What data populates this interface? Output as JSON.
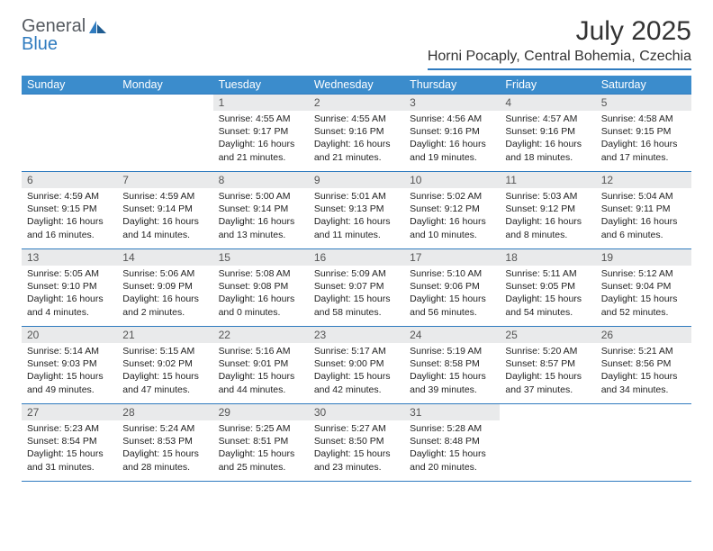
{
  "logo": {
    "general": "General",
    "blue": "Blue"
  },
  "title": "July 2025",
  "location": "Horni Pocaply, Central Bohemia, Czechia",
  "colors": {
    "header_bg": "#3b8ccc",
    "border": "#2f7bbf",
    "daynum_bg": "#e9eaeb",
    "text": "#222222",
    "title_text": "#333333"
  },
  "weekdays": [
    "Sunday",
    "Monday",
    "Tuesday",
    "Wednesday",
    "Thursday",
    "Friday",
    "Saturday"
  ],
  "weeks": [
    [
      {
        "n": "",
        "sr": "",
        "ss": "",
        "dl": ""
      },
      {
        "n": "",
        "sr": "",
        "ss": "",
        "dl": ""
      },
      {
        "n": "1",
        "sr": "Sunrise: 4:55 AM",
        "ss": "Sunset: 9:17 PM",
        "dl": "Daylight: 16 hours and 21 minutes."
      },
      {
        "n": "2",
        "sr": "Sunrise: 4:55 AM",
        "ss": "Sunset: 9:16 PM",
        "dl": "Daylight: 16 hours and 21 minutes."
      },
      {
        "n": "3",
        "sr": "Sunrise: 4:56 AM",
        "ss": "Sunset: 9:16 PM",
        "dl": "Daylight: 16 hours and 19 minutes."
      },
      {
        "n": "4",
        "sr": "Sunrise: 4:57 AM",
        "ss": "Sunset: 9:16 PM",
        "dl": "Daylight: 16 hours and 18 minutes."
      },
      {
        "n": "5",
        "sr": "Sunrise: 4:58 AM",
        "ss": "Sunset: 9:15 PM",
        "dl": "Daylight: 16 hours and 17 minutes."
      }
    ],
    [
      {
        "n": "6",
        "sr": "Sunrise: 4:59 AM",
        "ss": "Sunset: 9:15 PM",
        "dl": "Daylight: 16 hours and 16 minutes."
      },
      {
        "n": "7",
        "sr": "Sunrise: 4:59 AM",
        "ss": "Sunset: 9:14 PM",
        "dl": "Daylight: 16 hours and 14 minutes."
      },
      {
        "n": "8",
        "sr": "Sunrise: 5:00 AM",
        "ss": "Sunset: 9:14 PM",
        "dl": "Daylight: 16 hours and 13 minutes."
      },
      {
        "n": "9",
        "sr": "Sunrise: 5:01 AM",
        "ss": "Sunset: 9:13 PM",
        "dl": "Daylight: 16 hours and 11 minutes."
      },
      {
        "n": "10",
        "sr": "Sunrise: 5:02 AM",
        "ss": "Sunset: 9:12 PM",
        "dl": "Daylight: 16 hours and 10 minutes."
      },
      {
        "n": "11",
        "sr": "Sunrise: 5:03 AM",
        "ss": "Sunset: 9:12 PM",
        "dl": "Daylight: 16 hours and 8 minutes."
      },
      {
        "n": "12",
        "sr": "Sunrise: 5:04 AM",
        "ss": "Sunset: 9:11 PM",
        "dl": "Daylight: 16 hours and 6 minutes."
      }
    ],
    [
      {
        "n": "13",
        "sr": "Sunrise: 5:05 AM",
        "ss": "Sunset: 9:10 PM",
        "dl": "Daylight: 16 hours and 4 minutes."
      },
      {
        "n": "14",
        "sr": "Sunrise: 5:06 AM",
        "ss": "Sunset: 9:09 PM",
        "dl": "Daylight: 16 hours and 2 minutes."
      },
      {
        "n": "15",
        "sr": "Sunrise: 5:08 AM",
        "ss": "Sunset: 9:08 PM",
        "dl": "Daylight: 16 hours and 0 minutes."
      },
      {
        "n": "16",
        "sr": "Sunrise: 5:09 AM",
        "ss": "Sunset: 9:07 PM",
        "dl": "Daylight: 15 hours and 58 minutes."
      },
      {
        "n": "17",
        "sr": "Sunrise: 5:10 AM",
        "ss": "Sunset: 9:06 PM",
        "dl": "Daylight: 15 hours and 56 minutes."
      },
      {
        "n": "18",
        "sr": "Sunrise: 5:11 AM",
        "ss": "Sunset: 9:05 PM",
        "dl": "Daylight: 15 hours and 54 minutes."
      },
      {
        "n": "19",
        "sr": "Sunrise: 5:12 AM",
        "ss": "Sunset: 9:04 PM",
        "dl": "Daylight: 15 hours and 52 minutes."
      }
    ],
    [
      {
        "n": "20",
        "sr": "Sunrise: 5:14 AM",
        "ss": "Sunset: 9:03 PM",
        "dl": "Daylight: 15 hours and 49 minutes."
      },
      {
        "n": "21",
        "sr": "Sunrise: 5:15 AM",
        "ss": "Sunset: 9:02 PM",
        "dl": "Daylight: 15 hours and 47 minutes."
      },
      {
        "n": "22",
        "sr": "Sunrise: 5:16 AM",
        "ss": "Sunset: 9:01 PM",
        "dl": "Daylight: 15 hours and 44 minutes."
      },
      {
        "n": "23",
        "sr": "Sunrise: 5:17 AM",
        "ss": "Sunset: 9:00 PM",
        "dl": "Daylight: 15 hours and 42 minutes."
      },
      {
        "n": "24",
        "sr": "Sunrise: 5:19 AM",
        "ss": "Sunset: 8:58 PM",
        "dl": "Daylight: 15 hours and 39 minutes."
      },
      {
        "n": "25",
        "sr": "Sunrise: 5:20 AM",
        "ss": "Sunset: 8:57 PM",
        "dl": "Daylight: 15 hours and 37 minutes."
      },
      {
        "n": "26",
        "sr": "Sunrise: 5:21 AM",
        "ss": "Sunset: 8:56 PM",
        "dl": "Daylight: 15 hours and 34 minutes."
      }
    ],
    [
      {
        "n": "27",
        "sr": "Sunrise: 5:23 AM",
        "ss": "Sunset: 8:54 PM",
        "dl": "Daylight: 15 hours and 31 minutes."
      },
      {
        "n": "28",
        "sr": "Sunrise: 5:24 AM",
        "ss": "Sunset: 8:53 PM",
        "dl": "Daylight: 15 hours and 28 minutes."
      },
      {
        "n": "29",
        "sr": "Sunrise: 5:25 AM",
        "ss": "Sunset: 8:51 PM",
        "dl": "Daylight: 15 hours and 25 minutes."
      },
      {
        "n": "30",
        "sr": "Sunrise: 5:27 AM",
        "ss": "Sunset: 8:50 PM",
        "dl": "Daylight: 15 hours and 23 minutes."
      },
      {
        "n": "31",
        "sr": "Sunrise: 5:28 AM",
        "ss": "Sunset: 8:48 PM",
        "dl": "Daylight: 15 hours and 20 minutes."
      },
      {
        "n": "",
        "sr": "",
        "ss": "",
        "dl": ""
      },
      {
        "n": "",
        "sr": "",
        "ss": "",
        "dl": ""
      }
    ]
  ]
}
